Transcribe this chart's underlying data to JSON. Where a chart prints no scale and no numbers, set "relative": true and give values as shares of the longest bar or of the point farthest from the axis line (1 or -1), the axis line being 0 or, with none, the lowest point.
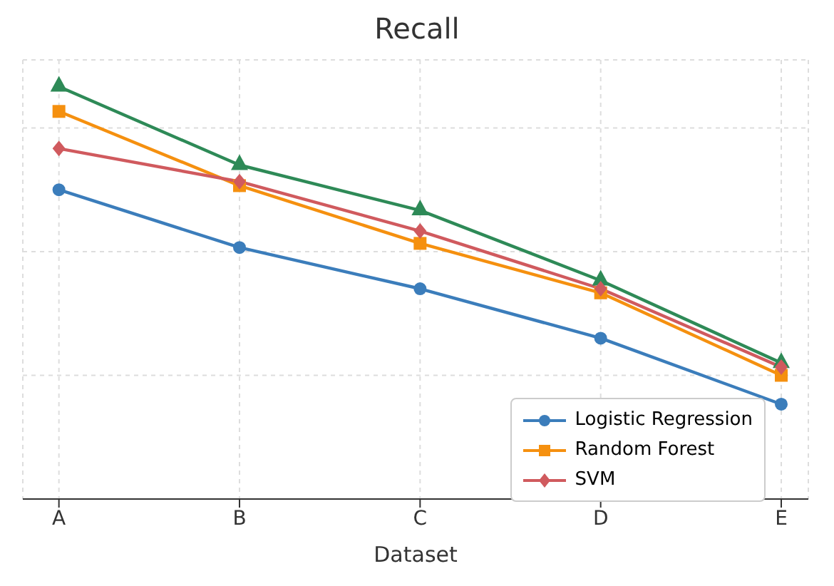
{
  "chart_data": {
    "type": "line",
    "title": "Recall",
    "xlabel": "Dataset",
    "categories": [
      "A",
      "B",
      "C",
      "D",
      "E"
    ],
    "relative": true,
    "grid": true,
    "legend": "bottom right",
    "line_style": "solid",
    "series": [
      {
        "name": "Logistic Regression",
        "color": "#3b7dbb",
        "marker": "circle",
        "values": [
          0.75,
          0.61,
          0.51,
          0.39,
          0.23
        ]
      },
      {
        "name": "Random Forest",
        "color": "#f5900f",
        "marker": "square",
        "values": [
          0.94,
          0.76,
          0.62,
          0.5,
          0.3
        ]
      },
      {
        "color": "#2e8a57",
        "marker": "triangle",
        "values": [
          1,
          0.81,
          0.7,
          0.53,
          0.33
        ]
      },
      {
        "name": "SVM",
        "color": "#d05a5e",
        "marker": "diamond",
        "values": [
          0.85,
          0.77,
          0.65,
          0.51,
          0.32
        ]
      }
    ]
  }
}
